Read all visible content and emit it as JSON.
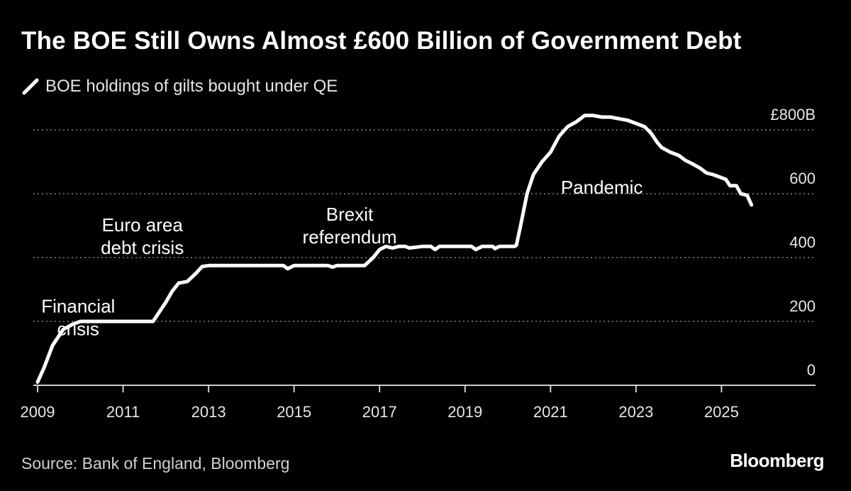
{
  "title": "The BOE Still Owns Almost £600 Billion of Government Debt",
  "source": "Source: Bank of England, Bloomberg",
  "brand": "Bloomberg",
  "colors": {
    "background": "#000000",
    "line": "#ffffff",
    "grid": "#8a8a8a",
    "text": "#ffffff"
  },
  "chart_data": {
    "type": "line",
    "title": "The BOE Still Owns Almost £600 Billion of Government Debt",
    "xlabel": "",
    "ylabel": "",
    "xlim": [
      2008.9,
      2027.2
    ],
    "ylim": [
      0,
      800
    ],
    "grid": true,
    "legend_position": "top-left",
    "x_ticks": [
      2009,
      2011,
      2013,
      2015,
      2017,
      2019,
      2021,
      2023,
      2025
    ],
    "x_tick_labels": [
      "2009",
      "2011",
      "2013",
      "2015",
      "2017",
      "2019",
      "2021",
      "2023",
      "2025"
    ],
    "y_ticks": [
      0,
      200,
      400,
      600,
      800
    ],
    "y_tick_labels": [
      "0",
      "200",
      "400",
      "600",
      "£800B"
    ],
    "annotations": [
      {
        "lines": [
          "Financial",
          "crisis"
        ],
        "x": 2009.95,
        "y": 228,
        "align": "middle"
      },
      {
        "lines": [
          "Euro area",
          "debt crisis"
        ],
        "x": 2011.45,
        "y": 482,
        "align": "middle"
      },
      {
        "lines": [
          "Brexit",
          "referendum"
        ],
        "x": 2016.3,
        "y": 516,
        "align": "middle"
      },
      {
        "lines": [
          "Pandemic"
        ],
        "x": 2022.2,
        "y": 600,
        "align": "middle"
      }
    ],
    "series": [
      {
        "name": "BOE holdings of gilts bought under QE",
        "x": [
          2009.0,
          2009.15,
          2009.35,
          2009.6,
          2009.8,
          2010.0,
          2010.5,
          2011.0,
          2011.5,
          2011.7,
          2011.85,
          2012.0,
          2012.15,
          2012.3,
          2012.5,
          2012.7,
          2012.85,
          2013.0,
          2013.5,
          2014.0,
          2014.5,
          2014.75,
          2014.85,
          2015.0,
          2015.5,
          2015.8,
          2015.9,
          2016.0,
          2016.2,
          2016.35,
          2016.5,
          2016.65,
          2016.85,
          2017.0,
          2017.15,
          2017.3,
          2017.45,
          2017.6,
          2017.7,
          2018.0,
          2018.2,
          2018.3,
          2018.4,
          2018.6,
          2019.0,
          2019.15,
          2019.25,
          2019.4,
          2019.65,
          2019.7,
          2019.8,
          2020.0,
          2020.15,
          2020.2,
          2020.3,
          2020.45,
          2020.6,
          2020.8,
          2021.0,
          2021.2,
          2021.4,
          2021.6,
          2021.8,
          2021.9,
          2022.0,
          2022.2,
          2022.4,
          2022.6,
          2022.8,
          2023.0,
          2023.2,
          2023.35,
          2023.5,
          2023.6,
          2023.8,
          2024.0,
          2024.15,
          2024.3,
          2024.5,
          2024.65,
          2024.8,
          2025.0,
          2025.1,
          2025.2,
          2025.35,
          2025.45,
          2025.6,
          2025.7
        ],
        "values": [
          10,
          55,
          125,
          175,
          190,
          200,
          200,
          200,
          200,
          200,
          230,
          260,
          295,
          320,
          325,
          350,
          372,
          375,
          375,
          375,
          375,
          375,
          365,
          375,
          375,
          375,
          370,
          375,
          375,
          375,
          375,
          375,
          400,
          425,
          435,
          430,
          435,
          435,
          430,
          435,
          435,
          425,
          435,
          435,
          435,
          435,
          425,
          435,
          435,
          428,
          435,
          435,
          435,
          438,
          500,
          600,
          660,
          700,
          730,
          780,
          810,
          825,
          845,
          845,
          845,
          840,
          840,
          835,
          830,
          820,
          810,
          790,
          760,
          745,
          730,
          720,
          705,
          695,
          680,
          665,
          660,
          650,
          645,
          625,
          625,
          600,
          595,
          565
        ]
      }
    ]
  }
}
